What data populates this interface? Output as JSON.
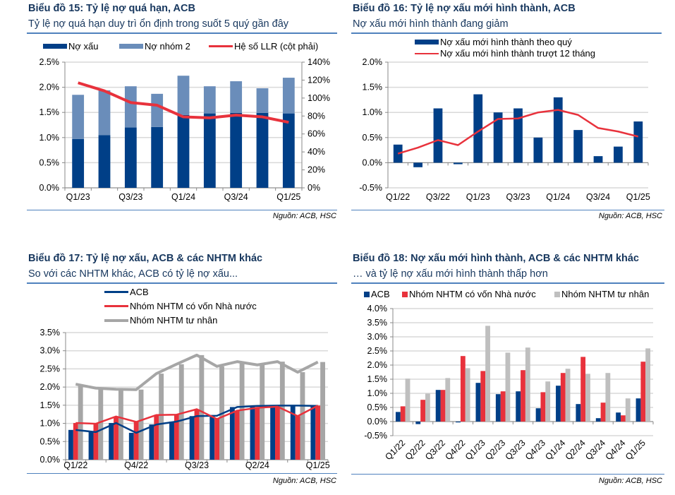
{
  "chart_data": [
    {
      "id": "c15",
      "type": "bar",
      "stacked": true,
      "title": "Biểu đồ 15: Tỷ lệ nợ quá hạn, ACB",
      "subtitle": "Tỷ lệ nợ quá hạn duy trì ổn định trong suốt 5 quý gần đây",
      "source": "Nguồn: ACB, HSC",
      "categories": [
        "Q1/23",
        "Q2/23",
        "Q3/23",
        "Q4/23",
        "Q1/24",
        "Q2/24",
        "Q3/24",
        "Q4/24",
        "Q1/25"
      ],
      "xtick_labels": [
        "Q1/23",
        "",
        "Q3/23",
        "",
        "Q1/24",
        "",
        "Q3/24",
        "",
        "Q1/25"
      ],
      "series": [
        {
          "name": "Nợ xấu",
          "kind": "bar",
          "axis": "left",
          "color": "#003F87",
          "values": [
            0.97,
            1.05,
            1.2,
            1.21,
            1.45,
            1.48,
            1.49,
            1.49,
            1.48
          ]
        },
        {
          "name": "Nợ nhóm 2",
          "kind": "bar",
          "axis": "left",
          "color": "#6A8DBA",
          "values": [
            0.88,
            0.89,
            0.82,
            0.66,
            0.78,
            0.54,
            0.63,
            0.49,
            0.71
          ]
        },
        {
          "name": "Hệ số LLR (cột phải)",
          "kind": "line",
          "axis": "right",
          "color": "#E8323C",
          "values": [
            117,
            108,
            95,
            92,
            79,
            78,
            81,
            79,
            73
          ]
        }
      ],
      "ylim": [
        0,
        2.5
      ],
      "yticks": [
        "0.0%",
        "0.5%",
        "1.0%",
        "1.5%",
        "2.0%",
        "2.5%"
      ],
      "y2lim": [
        0,
        140
      ],
      "y2ticks": [
        "0%",
        "20%",
        "40%",
        "60%",
        "80%",
        "100%",
        "120%",
        "140%"
      ],
      "grid": true,
      "legend": "top"
    },
    {
      "id": "c16",
      "type": "bar",
      "title": "Biểu đồ 16: Tỷ lệ nợ xấu mới hình thành, ACB",
      "subtitle": "Nợ xấu mới hình thành đang giảm",
      "source": "Nguồn: ACB, HSC",
      "categories": [
        "Q1/22",
        "Q2/22",
        "Q3/22",
        "Q4/22",
        "Q1/23",
        "Q2/23",
        "Q3/23",
        "Q4/23",
        "Q1/24",
        "Q2/24",
        "Q3/24",
        "Q4/24",
        "Q1/25"
      ],
      "xtick_labels": [
        "Q1/22",
        "",
        "Q3/22",
        "",
        "Q1/23",
        "",
        "Q3/23",
        "",
        "Q1/24",
        "",
        "Q3/24",
        "",
        "Q1/25"
      ],
      "series": [
        {
          "name": "Nợ xấu mới hình thành theo quý",
          "kind": "bar",
          "color": "#003F87",
          "values": [
            0.36,
            -0.09,
            1.08,
            -0.03,
            1.36,
            1.0,
            1.08,
            0.5,
            1.3,
            0.65,
            0.13,
            0.32,
            0.82
          ]
        },
        {
          "name": "Nợ xấu mới hình thành trượt 12 tháng",
          "kind": "line",
          "color": "#E8323C",
          "values": [
            0.18,
            0.3,
            0.45,
            0.35,
            0.62,
            0.87,
            0.88,
            1.0,
            1.05,
            0.95,
            0.69,
            0.62,
            0.52
          ]
        }
      ],
      "ylim": [
        -0.5,
        2.0
      ],
      "yticks": [
        "-0.5%",
        "0.0%",
        "0.5%",
        "1.0%",
        "1.5%",
        "2.0%"
      ],
      "grid": true,
      "legend": "top"
    },
    {
      "id": "c17",
      "type": "line",
      "title": "Biểu đồ 17: Tỷ lệ nợ xấu, ACB & các NHTM khác",
      "subtitle": "So với các NHTM khác, ACB có tỷ lệ nợ xấu...",
      "source": "Nguồn: ACB, HSC",
      "categories": [
        "Q1/22",
        "Q2/22",
        "Q3/22",
        "Q4/22",
        "Q1/23",
        "Q2/23",
        "Q3/23",
        "Q4/23",
        "Q1/24",
        "Q2/24",
        "Q3/24",
        "Q4/24",
        "Q1/25"
      ],
      "xtick_labels": [
        "Q1/22",
        "",
        "",
        "Q4/22",
        "",
        "",
        "Q3/23",
        "",
        "",
        "Q2/24",
        "",
        "",
        "Q1/25"
      ],
      "series": [
        {
          "name": "ACB",
          "color": "#003F87",
          "values": [
            0.82,
            0.76,
            1.01,
            0.74,
            0.97,
            1.05,
            1.2,
            1.21,
            1.45,
            1.48,
            1.49,
            1.49,
            1.48
          ]
        },
        {
          "name": "Nhóm NHTM có vốn Nhà nước",
          "color": "#E8323C",
          "values": [
            1.01,
            0.99,
            1.19,
            1.04,
            1.23,
            1.24,
            1.39,
            1.12,
            1.35,
            1.43,
            1.46,
            1.2,
            1.49
          ]
        },
        {
          "name": "Nhóm NHTM tư nhân",
          "color": "#A6A6A6",
          "values": [
            2.08,
            1.97,
            1.94,
            1.93,
            2.37,
            2.63,
            2.88,
            2.57,
            2.7,
            2.61,
            2.7,
            2.41,
            2.69
          ]
        }
      ],
      "ylim": [
        0,
        3.5
      ],
      "yticks": [
        "0.0%",
        "0.5%",
        "1.0%",
        "1.5%",
        "2.0%",
        "2.5%",
        "3.0%",
        "3.5%"
      ],
      "grid": true,
      "legend": "top"
    },
    {
      "id": "c18",
      "type": "bar",
      "title": "Biểu đồ 18: Nợ xấu mới hình thành, ACB & các NHTM khác",
      "subtitle": "… và tỷ lệ nợ xấu mới hình thành thấp hơn",
      "source": "Nguồn: ACB, HSC",
      "categories": [
        "Q1/22",
        "Q2/22",
        "Q3/22",
        "Q4/22",
        "Q1/23",
        "Q2/23",
        "Q3/23",
        "Q4/23",
        "Q1/24",
        "Q2/24",
        "Q3/24",
        "Q4/24",
        "Q1/25"
      ],
      "xtick_labels": [
        "Q1/22",
        "Q2/22",
        "Q3/22",
        "Q4/22",
        "Q1/23",
        "Q2/23",
        "Q3/23",
        "Q4/23",
        "Q1/24",
        "Q2/24",
        "Q3/24",
        "Q4/24",
        "Q1/25"
      ],
      "series": [
        {
          "name": "ACB",
          "color": "#003F87",
          "values": [
            0.34,
            -0.09,
            1.12,
            -0.03,
            1.37,
            0.97,
            1.07,
            0.47,
            1.27,
            0.62,
            0.12,
            0.32,
            0.82
          ]
        },
        {
          "name": "Nhóm NHTM có vốn Nhà nước",
          "color": "#E8323C",
          "values": [
            0.54,
            0.77,
            1.12,
            2.32,
            1.79,
            1.07,
            1.82,
            1.04,
            1.72,
            2.29,
            0.67,
            0.22,
            2.12
          ]
        },
        {
          "name": "Nhóm NHTM tư nhân",
          "color": "#BFBFBF",
          "values": [
            1.52,
            0.99,
            1.54,
            1.89,
            3.39,
            2.44,
            2.62,
            1.42,
            1.87,
            1.69,
            1.72,
            0.82,
            2.59
          ]
        }
      ],
      "ylim": [
        -0.5,
        4.0
      ],
      "yticks": [
        "-0.5%",
        "0.0%",
        "0.5%",
        "1.0%",
        "1.5%",
        "2.0%",
        "2.5%",
        "3.0%",
        "3.5%",
        "4.0%"
      ],
      "grid": true,
      "legend": "top"
    }
  ]
}
